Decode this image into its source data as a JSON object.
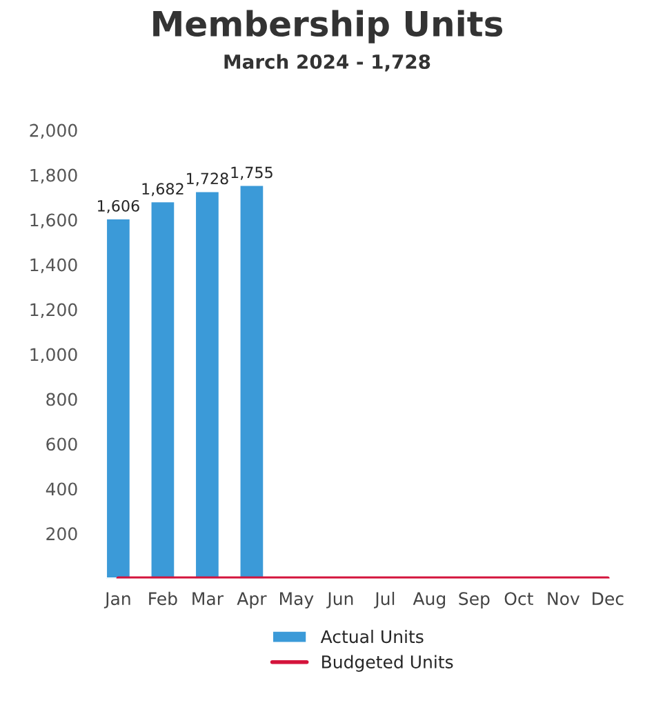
{
  "chart_data": {
    "type": "bar",
    "title": "Membership Units",
    "subtitle": "March 2024 - 1,728",
    "categories": [
      "Jan",
      "Feb",
      "Mar",
      "Apr",
      "May",
      "Jun",
      "Jul",
      "Aug",
      "Sep",
      "Oct",
      "Nov",
      "Dec"
    ],
    "series": [
      {
        "name": "Actual Units",
        "color": "#3b9ad8",
        "values": [
          1606,
          1682,
          1728,
          1755,
          null,
          null,
          null,
          null,
          null,
          null,
          null,
          null
        ],
        "value_labels": [
          "1,606",
          "1,682",
          "1,728",
          "1,755",
          null,
          null,
          null,
          null,
          null,
          null,
          null,
          null
        ]
      },
      {
        "name": "Budgeted Units",
        "type": "line",
        "color": "#d4143c",
        "values": [
          0,
          0,
          0,
          0,
          0,
          0,
          0,
          0,
          0,
          0,
          0,
          0
        ]
      }
    ],
    "ylim": [
      0,
      2000
    ],
    "yticks": [
      {
        "value": 200,
        "label": "200"
      },
      {
        "value": 400,
        "label": "400"
      },
      {
        "value": 600,
        "label": "600"
      },
      {
        "value": 800,
        "label": "800"
      },
      {
        "value": 1000,
        "label": "1,000"
      },
      {
        "value": 1200,
        "label": "1,200"
      },
      {
        "value": 1400,
        "label": "1,400"
      },
      {
        "value": 1600,
        "label": "1,600"
      },
      {
        "value": 1800,
        "label": "1,800"
      },
      {
        "value": 2000,
        "label": "2,000"
      }
    ],
    "grid": false,
    "legend": "bottom"
  }
}
